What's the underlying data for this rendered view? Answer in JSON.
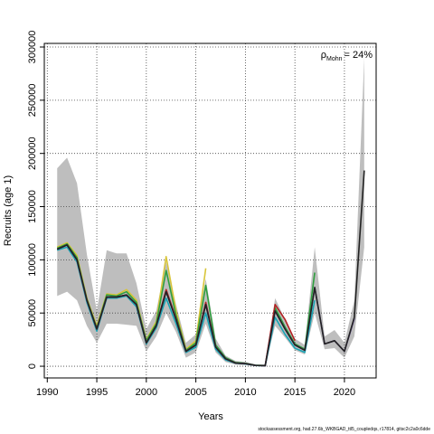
{
  "chart_data": {
    "type": "line",
    "x_label": "Years",
    "y_label": "Recruits (age 1)",
    "annotation": {
      "symbol": "ρ",
      "subscript": "Mohn",
      "text": "= 24%"
    },
    "footer": "stockassessment.org, had.27.6b_WKBGAD_ttl5_coupledqs, r17814, gitsc2c2a0c6dde",
    "x": [
      1991,
      1992,
      1993,
      1994,
      1995,
      1996,
      1997,
      1998,
      1999,
      2000,
      2001,
      2002,
      2003,
      2004,
      2005,
      2006,
      2007,
      2008,
      2009,
      2010,
      2011,
      2012,
      2013,
      2014,
      2015,
      2016,
      2017,
      2018,
      2019,
      2020,
      2021,
      2022
    ],
    "band": {
      "color": "#bebebe",
      "upper": [
        186000,
        196000,
        172000,
        105000,
        52000,
        109000,
        106000,
        106000,
        78000,
        35000,
        52000,
        98000,
        58000,
        22000,
        30000,
        82000,
        26000,
        10000,
        5000,
        4000,
        2000,
        1500,
        64000,
        44000,
        26000,
        20000,
        112000,
        28000,
        34000,
        22000,
        62000,
        290000
      ],
      "lower": [
        66000,
        70000,
        62000,
        38000,
        22000,
        40000,
        40000,
        39000,
        38000,
        14000,
        28000,
        50000,
        32000,
        8000,
        13000,
        40000,
        13000,
        4000,
        1500,
        1000,
        300,
        200,
        38000,
        27000,
        15000,
        11000,
        50000,
        16000,
        17000,
        8000,
        28000,
        112000
      ]
    },
    "series": [
      {
        "color": "#d8c53a",
        "values": [
          112000,
          116000,
          104000,
          64000,
          38000,
          68000,
          67000,
          72000,
          62000,
          25000,
          42000,
          103000,
          52000,
          16000,
          24000,
          92000,
          null,
          null,
          null,
          null,
          null,
          null,
          null,
          null,
          null,
          null,
          null,
          null,
          null,
          null,
          null,
          null
        ]
      },
      {
        "color": "#2e9e3e",
        "values": [
          111000,
          115000,
          102000,
          63000,
          36000,
          67000,
          66000,
          70000,
          60000,
          24000,
          40000,
          90000,
          48000,
          15000,
          22000,
          76000,
          20000,
          8000,
          3500,
          2800,
          900,
          600,
          55000,
          37000,
          21000,
          16000,
          88000,
          null,
          null,
          null,
          null,
          null
        ]
      },
      {
        "color": "#18a5b5",
        "values": [
          109000,
          112000,
          98000,
          60000,
          33000,
          64000,
          64000,
          66000,
          56000,
          21000,
          36000,
          64000,
          40000,
          13000,
          18000,
          50000,
          16000,
          6000,
          2800,
          2200,
          700,
          400,
          46000,
          30000,
          17000,
          13000,
          62000,
          null,
          null,
          null,
          null,
          null
        ]
      },
      {
        "color": "#b22222",
        "values": [
          110000,
          114000,
          100000,
          62000,
          35000,
          65000,
          65000,
          67000,
          58000,
          22000,
          38000,
          72000,
          45000,
          14000,
          20000,
          60000,
          18000,
          7000,
          3000,
          2500,
          800,
          500,
          58000,
          44000,
          24000,
          null,
          null,
          null,
          null,
          null,
          null,
          null
        ]
      },
      {
        "color": "#5a3d9a",
        "values": [
          110000,
          114000,
          100000,
          62000,
          35000,
          65000,
          65000,
          67000,
          58000,
          22000,
          38000,
          70000,
          44000,
          14000,
          20000,
          58000,
          18000,
          7000,
          3000,
          2500,
          800,
          500,
          52000,
          35000,
          20000,
          15000,
          74000,
          21000,
          24000,
          14000,
          45000,
          null
        ]
      },
      {
        "color": "#222222",
        "values": [
          110000,
          114000,
          100000,
          62000,
          35000,
          65000,
          65000,
          67000,
          58000,
          22000,
          38000,
          70000,
          44000,
          14000,
          20000,
          58000,
          18000,
          7000,
          3000,
          2500,
          800,
          500,
          52000,
          35000,
          20000,
          15000,
          74000,
          21000,
          24000,
          14000,
          46000,
          184000
        ]
      }
    ],
    "xlim": [
      1989.7,
      2023.2
    ],
    "ylim": [
      -11000,
      303400
    ],
    "xticks": [
      1990,
      1995,
      2000,
      2005,
      2010,
      2015,
      2020
    ],
    "yticks": [
      0,
      50000,
      100000,
      150000,
      200000,
      250000,
      300000
    ],
    "grid": true
  }
}
